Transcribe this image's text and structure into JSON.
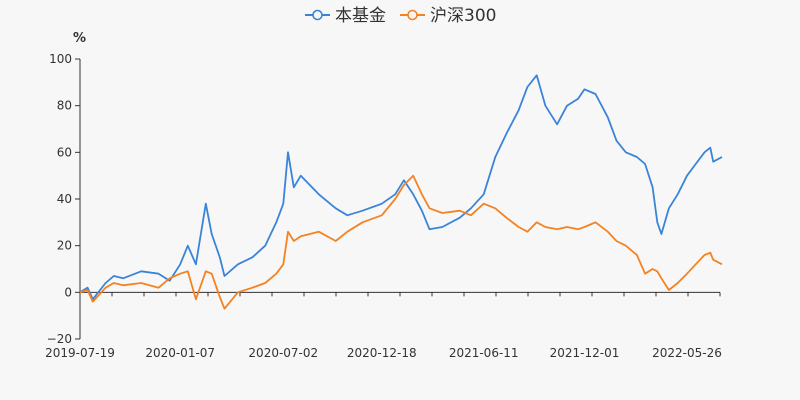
{
  "chart_data": {
    "type": "line",
    "y_unit": "%",
    "ylim": [
      -20,
      100
    ],
    "y_ticks": [
      "−20",
      "0",
      "20",
      "40",
      "60",
      "80",
      "100"
    ],
    "x_ticks": [
      "2019-07-19",
      "2020-01-07",
      "2020-07-02",
      "2020-12-18",
      "2021-06-11",
      "2021-12-01",
      "2022-05-26"
    ],
    "grid": false,
    "legend_position": "top-center",
    "series": [
      {
        "name": "本基金",
        "color": "#3a84d8",
        "points": [
          [
            "2019-07-19",
            0
          ],
          [
            "2019-08-01",
            2
          ],
          [
            "2019-08-10",
            -3
          ],
          [
            "2019-09-01",
            4
          ],
          [
            "2019-09-15",
            7
          ],
          [
            "2019-10-01",
            6
          ],
          [
            "2019-11-01",
            9
          ],
          [
            "2019-12-01",
            8
          ],
          [
            "2019-12-20",
            5
          ],
          [
            "2020-01-07",
            12
          ],
          [
            "2020-01-20",
            20
          ],
          [
            "2020-02-03",
            12
          ],
          [
            "2020-02-20",
            38
          ],
          [
            "2020-03-01",
            25
          ],
          [
            "2020-03-15",
            15
          ],
          [
            "2020-03-23",
            7
          ],
          [
            "2020-04-15",
            12
          ],
          [
            "2020-05-10",
            15
          ],
          [
            "2020-06-01",
            20
          ],
          [
            "2020-06-20",
            30
          ],
          [
            "2020-07-02",
            38
          ],
          [
            "2020-07-10",
            60
          ],
          [
            "2020-07-20",
            45
          ],
          [
            "2020-08-01",
            50
          ],
          [
            "2020-09-01",
            42
          ],
          [
            "2020-09-30",
            36
          ],
          [
            "2020-10-20",
            33
          ],
          [
            "2020-11-15",
            35
          ],
          [
            "2020-12-18",
            38
          ],
          [
            "2021-01-10",
            42
          ],
          [
            "2021-01-25",
            48
          ],
          [
            "2021-02-10",
            42
          ],
          [
            "2021-02-25",
            35
          ],
          [
            "2021-03-10",
            27
          ],
          [
            "2021-04-01",
            28
          ],
          [
            "2021-05-01",
            32
          ],
          [
            "2021-05-20",
            36
          ],
          [
            "2021-06-11",
            42
          ],
          [
            "2021-07-01",
            58
          ],
          [
            "2021-07-20",
            68
          ],
          [
            "2021-08-10",
            78
          ],
          [
            "2021-08-25",
            88
          ],
          [
            "2021-09-10",
            93
          ],
          [
            "2021-09-25",
            80
          ],
          [
            "2021-10-15",
            72
          ],
          [
            "2021-11-01",
            80
          ],
          [
            "2021-11-20",
            83
          ],
          [
            "2021-12-01",
            87
          ],
          [
            "2021-12-20",
            85
          ],
          [
            "2022-01-10",
            75
          ],
          [
            "2022-01-25",
            65
          ],
          [
            "2022-02-10",
            60
          ],
          [
            "2022-03-01",
            58
          ],
          [
            "2022-03-15",
            55
          ],
          [
            "2022-03-28",
            45
          ],
          [
            "2022-04-05",
            30
          ],
          [
            "2022-04-12",
            25
          ],
          [
            "2022-04-25",
            36
          ],
          [
            "2022-05-10",
            42
          ],
          [
            "2022-05-26",
            50
          ],
          [
            "2022-06-10",
            55
          ],
          [
            "2022-06-25",
            60
          ],
          [
            "2022-07-05",
            62
          ],
          [
            "2022-07-10",
            56
          ],
          [
            "2022-07-25",
            58
          ]
        ]
      },
      {
        "name": "沪深300",
        "color": "#f58220",
        "points": [
          [
            "2019-07-19",
            0
          ],
          [
            "2019-08-01",
            1
          ],
          [
            "2019-08-10",
            -4
          ],
          [
            "2019-09-01",
            2
          ],
          [
            "2019-09-15",
            4
          ],
          [
            "2019-10-01",
            3
          ],
          [
            "2019-11-01",
            4
          ],
          [
            "2019-12-01",
            2
          ],
          [
            "2019-12-20",
            6
          ],
          [
            "2020-01-07",
            8
          ],
          [
            "2020-01-20",
            9
          ],
          [
            "2020-02-03",
            -3
          ],
          [
            "2020-02-20",
            9
          ],
          [
            "2020-03-01",
            8
          ],
          [
            "2020-03-15",
            -2
          ],
          [
            "2020-03-23",
            -7
          ],
          [
            "2020-04-15",
            0
          ],
          [
            "2020-05-10",
            2
          ],
          [
            "2020-06-01",
            4
          ],
          [
            "2020-06-20",
            8
          ],
          [
            "2020-07-02",
            12
          ],
          [
            "2020-07-10",
            26
          ],
          [
            "2020-07-20",
            22
          ],
          [
            "2020-08-01",
            24
          ],
          [
            "2020-09-01",
            26
          ],
          [
            "2020-09-30",
            22
          ],
          [
            "2020-10-20",
            26
          ],
          [
            "2020-11-15",
            30
          ],
          [
            "2020-12-18",
            33
          ],
          [
            "2021-01-10",
            40
          ],
          [
            "2021-01-25",
            46
          ],
          [
            "2021-02-10",
            50
          ],
          [
            "2021-02-25",
            42
          ],
          [
            "2021-03-10",
            36
          ],
          [
            "2021-04-01",
            34
          ],
          [
            "2021-05-01",
            35
          ],
          [
            "2021-05-20",
            33
          ],
          [
            "2021-06-11",
            38
          ],
          [
            "2021-07-01",
            36
          ],
          [
            "2021-07-20",
            32
          ],
          [
            "2021-08-10",
            28
          ],
          [
            "2021-08-25",
            26
          ],
          [
            "2021-09-10",
            30
          ],
          [
            "2021-09-25",
            28
          ],
          [
            "2021-10-15",
            27
          ],
          [
            "2021-11-01",
            28
          ],
          [
            "2021-11-20",
            27
          ],
          [
            "2021-12-01",
            28
          ],
          [
            "2021-12-20",
            30
          ],
          [
            "2022-01-10",
            26
          ],
          [
            "2022-01-25",
            22
          ],
          [
            "2022-02-10",
            20
          ],
          [
            "2022-03-01",
            16
          ],
          [
            "2022-03-15",
            8
          ],
          [
            "2022-03-28",
            10
          ],
          [
            "2022-04-05",
            9
          ],
          [
            "2022-04-12",
            6
          ],
          [
            "2022-04-25",
            1
          ],
          [
            "2022-05-10",
            4
          ],
          [
            "2022-05-26",
            8
          ],
          [
            "2022-06-10",
            12
          ],
          [
            "2022-06-25",
            16
          ],
          [
            "2022-07-05",
            17
          ],
          [
            "2022-07-10",
            14
          ],
          [
            "2022-07-25",
            12
          ]
        ]
      }
    ]
  }
}
